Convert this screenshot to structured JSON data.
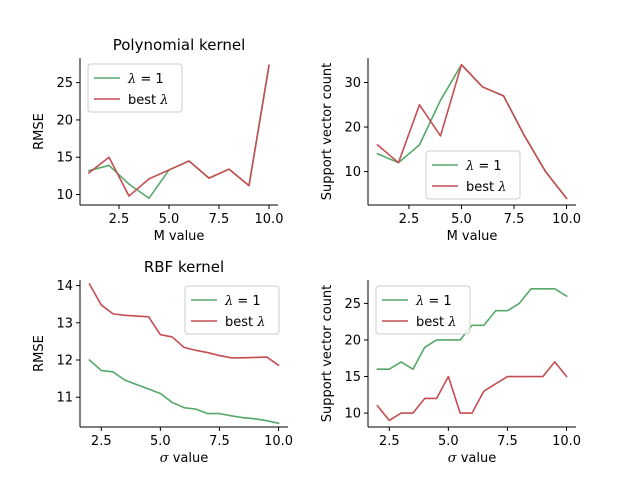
{
  "colors": {
    "lambda1": "#55a868",
    "best": "#c44e52"
  },
  "chart_data": [
    {
      "type": "line",
      "title": "Polynomial kernel",
      "xlabel": "M value",
      "ylabel": "RMSE",
      "xlim": [
        0.55,
        10.45
      ],
      "ylim": [
        8.6,
        28.3
      ],
      "xticks": [
        2.5,
        5.0,
        7.5,
        10.0
      ],
      "xtick_labels": [
        "2.5",
        "5.0",
        "7.5",
        "10.0"
      ],
      "yticks": [
        10,
        15,
        20,
        25
      ],
      "ytick_labels": [
        "10",
        "15",
        "20",
        "25"
      ],
      "legend_position": "upper-left",
      "x": [
        1,
        2,
        3,
        4,
        5,
        6,
        7,
        8,
        9,
        10
      ],
      "series": [
        {
          "name": "λ = 1",
          "color_key": "lambda1",
          "values": [
            13.2,
            13.9,
            11.4,
            9.5,
            13.3,
            14.5,
            12.2,
            13.4,
            11.2,
            27.3
          ]
        },
        {
          "name": "best λ",
          "color_key": "best",
          "values": [
            12.9,
            15.0,
            9.8,
            12.1,
            13.3,
            14.5,
            12.2,
            13.4,
            11.2,
            27.3
          ]
        }
      ]
    },
    {
      "type": "line",
      "title": "",
      "xlabel": "M value",
      "ylabel": "Support vector count",
      "xlim": [
        0.55,
        10.45
      ],
      "ylim": [
        2.5,
        35.5
      ],
      "xticks": [
        2.5,
        5.0,
        7.5,
        10.0
      ],
      "xtick_labels": [
        "2.5",
        "5.0",
        "7.5",
        "10.0"
      ],
      "yticks": [
        10,
        20,
        30
      ],
      "ytick_labels": [
        "10",
        "20",
        "30"
      ],
      "legend_position": "lower-center",
      "x": [
        1,
        2,
        3,
        4,
        5,
        6,
        7,
        8,
        9,
        10
      ],
      "series": [
        {
          "name": "λ = 1",
          "color_key": "lambda1",
          "values": [
            14,
            12,
            16,
            26,
            34,
            29,
            27,
            18,
            10,
            4
          ]
        },
        {
          "name": "best λ",
          "color_key": "best",
          "values": [
            16,
            12,
            25,
            18,
            34,
            29,
            27,
            18,
            10,
            4
          ]
        }
      ]
    },
    {
      "type": "line",
      "title": "RBF kernel",
      "xlabel": "σ value",
      "ylabel": "RMSE",
      "xlim": [
        1.6,
        10.4
      ],
      "ylim": [
        10.2,
        14.15
      ],
      "xticks": [
        2.5,
        5.0,
        7.5,
        10.0
      ],
      "xtick_labels": [
        "2.5",
        "5.0",
        "7.5",
        "10.0"
      ],
      "yticks": [
        11,
        12,
        13,
        14
      ],
      "ytick_labels": [
        "11",
        "12",
        "13",
        "14"
      ],
      "legend_position": "upper-right",
      "x": [
        2.0,
        2.5,
        3.0,
        3.5,
        4.0,
        4.5,
        5.0,
        5.5,
        6.0,
        6.5,
        7.0,
        7.5,
        8.0,
        8.5,
        9.0,
        9.5,
        10.0
      ],
      "series": [
        {
          "name": "λ = 1",
          "color_key": "lambda1",
          "values": [
            12.0,
            11.72,
            11.68,
            11.46,
            11.34,
            11.22,
            11.1,
            10.86,
            10.72,
            10.68,
            10.56,
            10.56,
            10.5,
            10.45,
            10.42,
            10.37,
            10.3
          ]
        },
        {
          "name": "best λ",
          "color_key": "best",
          "values": [
            14.04,
            13.48,
            13.24,
            13.2,
            13.18,
            13.16,
            12.68,
            12.62,
            12.34,
            12.26,
            12.2,
            12.12,
            12.06,
            12.06,
            12.07,
            12.08,
            11.86
          ]
        }
      ]
    },
    {
      "type": "line",
      "title": "",
      "xlabel": "σ value",
      "ylabel": "Support vector count",
      "xlim": [
        1.6,
        10.4
      ],
      "ylim": [
        8.1,
        28.2
      ],
      "xticks": [
        2.5,
        5.0,
        7.5,
        10.0
      ],
      "xtick_labels": [
        "2.5",
        "5.0",
        "7.5",
        "10.0"
      ],
      "yticks": [
        10,
        15,
        20,
        25
      ],
      "ytick_labels": [
        "10",
        "15",
        "20",
        "25"
      ],
      "legend_position": "upper-left",
      "x": [
        2.0,
        2.5,
        3.0,
        3.5,
        4.0,
        4.5,
        5.0,
        5.5,
        6.0,
        6.5,
        7.0,
        7.5,
        8.0,
        8.5,
        9.0,
        9.5,
        10.0
      ],
      "series": [
        {
          "name": "λ = 1",
          "color_key": "lambda1",
          "values": [
            16,
            16,
            17,
            16,
            19,
            20,
            20,
            20,
            22,
            22,
            24,
            24,
            25,
            27,
            27,
            27,
            26
          ]
        },
        {
          "name": "best λ",
          "color_key": "best",
          "values": [
            11,
            9,
            10,
            10,
            12,
            12,
            15,
            10,
            10,
            13,
            14,
            15,
            15,
            15,
            15,
            17,
            15
          ]
        }
      ]
    }
  ]
}
